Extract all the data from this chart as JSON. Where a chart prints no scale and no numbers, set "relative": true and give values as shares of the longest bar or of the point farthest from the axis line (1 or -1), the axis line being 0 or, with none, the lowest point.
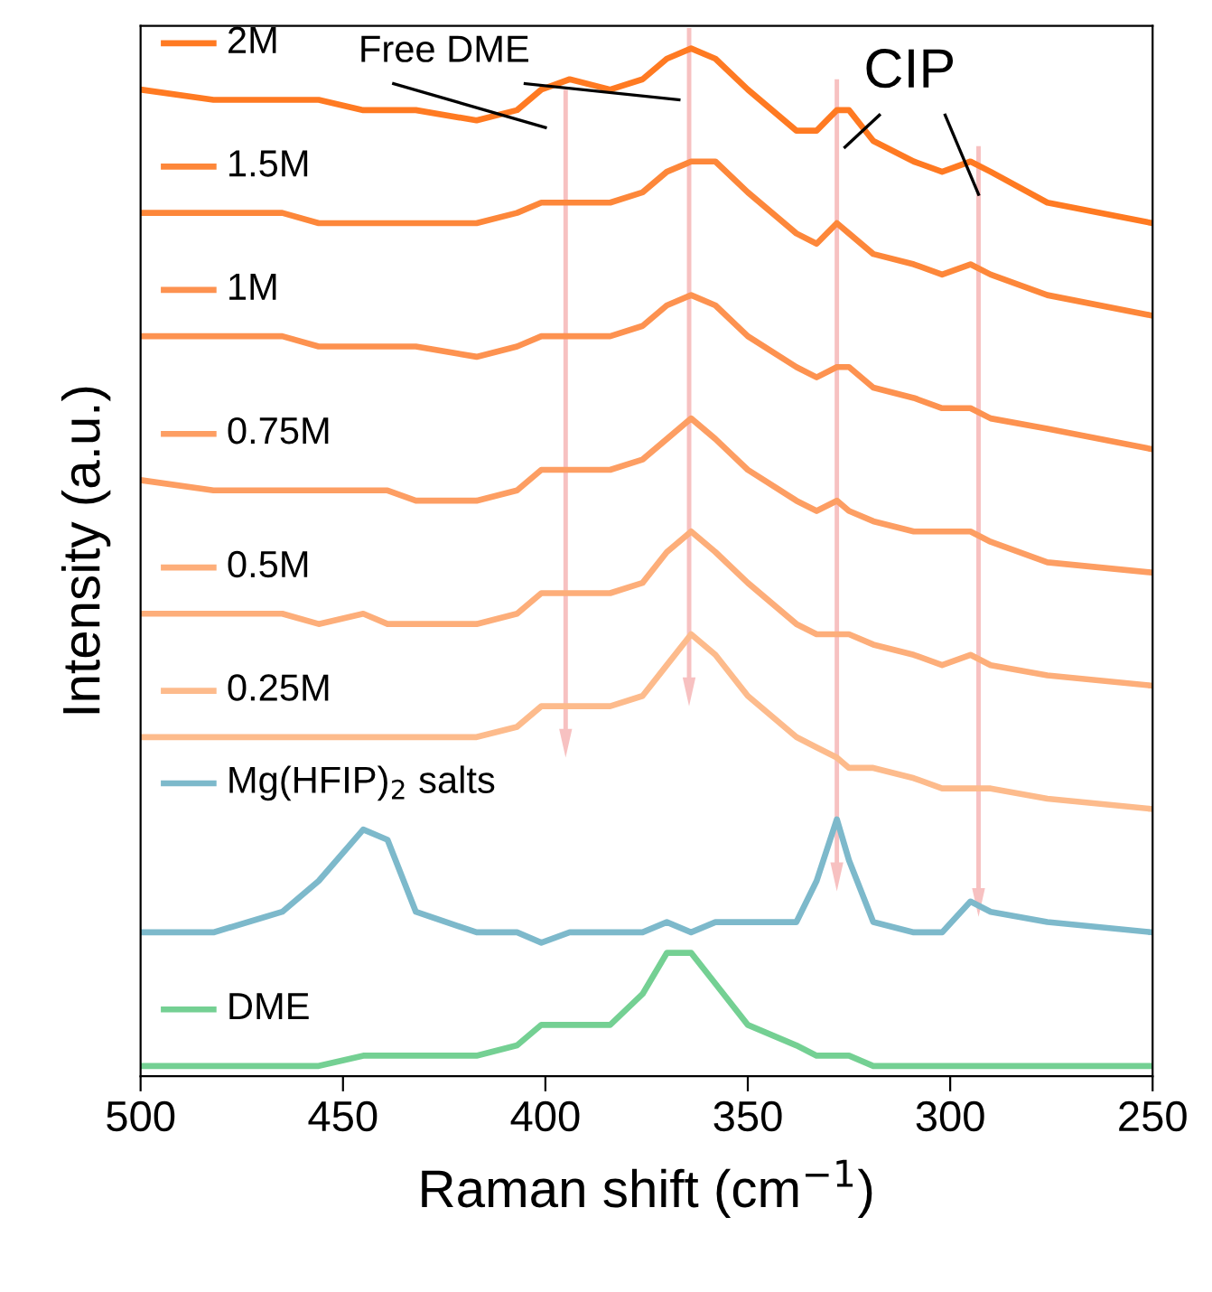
{
  "chart_data": {
    "type": "line",
    "relative": true,
    "xlabel": "Raman shift (cm$^{−1}$)",
    "ylabel": "Intensity (a.u.)",
    "xlim": [
      500,
      250
    ],
    "xticks": [
      500,
      450,
      400,
      350,
      300,
      250
    ],
    "legend": "left",
    "grid": false,
    "x": [
      500,
      482,
      465,
      456,
      445,
      439,
      432,
      417,
      407,
      401,
      394,
      384,
      376,
      370,
      364,
      358,
      350,
      338,
      333,
      328,
      325,
      319,
      309,
      302,
      295,
      290,
      276,
      250
    ],
    "series": [
      {
        "name": "2M",
        "color": "#ff7a22",
        "values": [
          0.96,
          0.95,
          0.95,
          0.95,
          0.94,
          0.94,
          0.94,
          0.93,
          0.94,
          0.96,
          0.97,
          0.96,
          0.97,
          0.99,
          1.0,
          0.99,
          0.96,
          0.92,
          0.92,
          0.94,
          0.94,
          0.91,
          0.89,
          0.88,
          0.89,
          0.88,
          0.85,
          0.83
        ]
      },
      {
        "name": "1.5M",
        "color": "#fd873a",
        "values": [
          0.84,
          0.84,
          0.84,
          0.83,
          0.83,
          0.83,
          0.83,
          0.83,
          0.84,
          0.85,
          0.85,
          0.85,
          0.86,
          0.88,
          0.89,
          0.89,
          0.86,
          0.82,
          0.81,
          0.83,
          0.82,
          0.8,
          0.79,
          0.78,
          0.79,
          0.78,
          0.76,
          0.74
        ]
      },
      {
        "name": "1M",
        "color": "#fd9250",
        "values": [
          0.72,
          0.72,
          0.72,
          0.71,
          0.71,
          0.71,
          0.71,
          0.7,
          0.71,
          0.72,
          0.72,
          0.72,
          0.73,
          0.75,
          0.76,
          0.75,
          0.72,
          0.69,
          0.68,
          0.69,
          0.69,
          0.67,
          0.66,
          0.65,
          0.65,
          0.64,
          0.63,
          0.61
        ]
      },
      {
        "name": "0.75M",
        "color": "#fd9e63",
        "values": [
          0.58,
          0.57,
          0.57,
          0.57,
          0.57,
          0.57,
          0.56,
          0.56,
          0.57,
          0.59,
          0.59,
          0.59,
          0.6,
          0.62,
          0.64,
          0.62,
          0.59,
          0.56,
          0.55,
          0.56,
          0.55,
          0.54,
          0.53,
          0.53,
          0.53,
          0.52,
          0.5,
          0.49
        ]
      },
      {
        "name": "0.5M",
        "color": "#fdae7a",
        "values": [
          0.45,
          0.45,
          0.45,
          0.44,
          0.45,
          0.44,
          0.44,
          0.44,
          0.45,
          0.47,
          0.47,
          0.47,
          0.48,
          0.51,
          0.53,
          0.51,
          0.48,
          0.44,
          0.43,
          0.43,
          0.43,
          0.42,
          0.41,
          0.4,
          0.41,
          0.4,
          0.39,
          0.38
        ]
      },
      {
        "name": "0.25M",
        "color": "#fdbb8c",
        "values": [
          0.33,
          0.33,
          0.33,
          0.33,
          0.33,
          0.33,
          0.33,
          0.33,
          0.34,
          0.36,
          0.36,
          0.36,
          0.37,
          0.4,
          0.43,
          0.41,
          0.37,
          0.33,
          0.32,
          0.31,
          0.3,
          0.3,
          0.29,
          0.28,
          0.28,
          0.28,
          0.27,
          0.26
        ]
      },
      {
        "name": "Mg(HFIP)$_{2}$ salts",
        "color": "#7db9cb",
        "values": [
          0.14,
          0.14,
          0.16,
          0.19,
          0.24,
          0.23,
          0.16,
          0.14,
          0.14,
          0.13,
          0.14,
          0.14,
          0.14,
          0.15,
          0.14,
          0.15,
          0.15,
          0.15,
          0.19,
          0.25,
          0.21,
          0.15,
          0.14,
          0.14,
          0.17,
          0.16,
          0.15,
          0.14
        ]
      },
      {
        "name": "DME",
        "color": "#74d093",
        "values": [
          0.01,
          0.01,
          0.01,
          0.01,
          0.02,
          0.02,
          0.02,
          0.02,
          0.03,
          0.05,
          0.05,
          0.05,
          0.08,
          0.12,
          0.12,
          0.09,
          0.05,
          0.03,
          0.02,
          0.02,
          0.02,
          0.01,
          0.01,
          0.01,
          0.01,
          0.01,
          0.01,
          0.01
        ]
      }
    ],
    "annotations": [
      "Free DME",
      "CIP"
    ]
  }
}
